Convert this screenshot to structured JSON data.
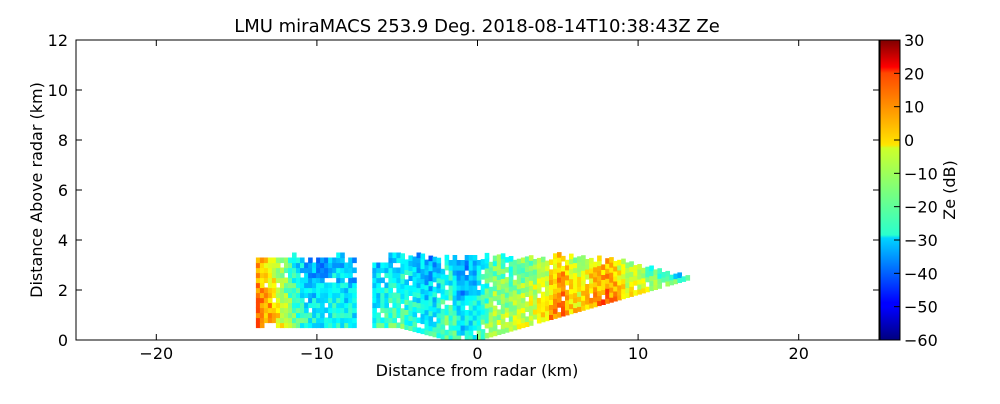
{
  "chart_data": {
    "type": "heatmap",
    "title": "LMU miraMACS 253.9 Deg. 2018-08-14T10:38:43Z  Ze",
    "xlabel": "Distance from radar (km)",
    "ylabel": "Distance Above radar  (km)",
    "xlim": [
      -25,
      25
    ],
    "ylim": [
      0,
      12
    ],
    "xticks": [
      -20,
      -10,
      0,
      10,
      20
    ],
    "yticks": [
      0,
      2,
      4,
      6,
      8,
      10,
      12
    ],
    "colorbar": {
      "label": "Ze (dB)",
      "range": [
        -60,
        30
      ],
      "ticks": [
        30,
        20,
        10,
        0,
        -10,
        -20,
        -30,
        -40,
        -50,
        -60
      ],
      "colormap": "jet"
    },
    "echo_region": {
      "x_range_km": [
        -13.8,
        13.7
      ],
      "base_height_km": [
        0.5,
        0.0
      ],
      "top_height_km": 3.2,
      "gaps_km": [
        [
          -7.8,
          -6.6
        ]
      ]
    },
    "intensity_profile": {
      "x_km": [
        -13.8,
        -13.0,
        -12.0,
        -11.0,
        -10.0,
        -9.0,
        -8.0,
        -6.5,
        -5.0,
        -4.0,
        -3.0,
        -2.0,
        -1.0,
        0.0,
        1.0,
        2.0,
        3.0,
        4.0,
        5.0,
        6.0,
        7.0,
        8.0,
        9.0,
        10.0,
        11.0,
        12.0,
        13.0,
        13.7
      ],
      "ze_db": [
        12,
        5,
        -10,
        -22,
        -26,
        -22,
        -25,
        -22,
        -18,
        -22,
        -25,
        -15,
        -28,
        -20,
        -8,
        -10,
        -6,
        -2,
        12,
        -2,
        5,
        10,
        -2,
        -5,
        -12,
        -18,
        -22,
        -26
      ]
    }
  }
}
